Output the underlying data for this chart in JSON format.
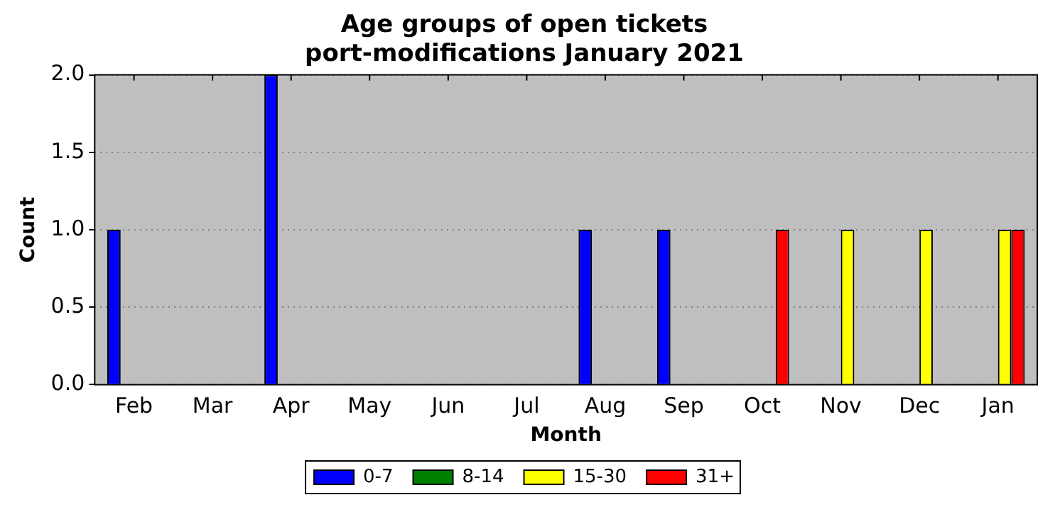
{
  "chart_data": {
    "type": "bar",
    "title": "Age groups of open tickets\nport-modifications January 2021",
    "xlabel": "Month",
    "ylabel": "Count",
    "categories": [
      "Feb",
      "Mar",
      "Apr",
      "May",
      "Jun",
      "Jul",
      "Aug",
      "Sep",
      "Oct",
      "Nov",
      "Dec",
      "Jan"
    ],
    "series": [
      {
        "name": "0-7",
        "color": "#0000ff",
        "values": [
          1,
          0,
          2,
          0,
          0,
          0,
          1,
          1,
          0,
          0,
          0,
          0
        ]
      },
      {
        "name": "8-14",
        "color": "#008000",
        "values": [
          0,
          0,
          0,
          0,
          0,
          0,
          0,
          0,
          0,
          0,
          0,
          0
        ]
      },
      {
        "name": "15-30",
        "color": "#ffff00",
        "values": [
          0,
          0,
          0,
          0,
          0,
          0,
          0,
          0,
          0,
          1,
          1,
          1
        ]
      },
      {
        "name": "31+",
        "color": "#ff0000",
        "values": [
          0,
          0,
          0,
          0,
          0,
          0,
          0,
          0,
          1,
          0,
          0,
          1
        ]
      }
    ],
    "ylim": [
      0,
      2
    ],
    "yticks": [
      {
        "value": 0,
        "label": "0.0"
      },
      {
        "value": 0.5,
        "label": "0.5"
      },
      {
        "value": 1,
        "label": "1.0"
      },
      {
        "value": 1.5,
        "label": "1.5"
      },
      {
        "value": 2,
        "label": "2.0"
      }
    ],
    "grid": "y",
    "legend": "bottom"
  }
}
